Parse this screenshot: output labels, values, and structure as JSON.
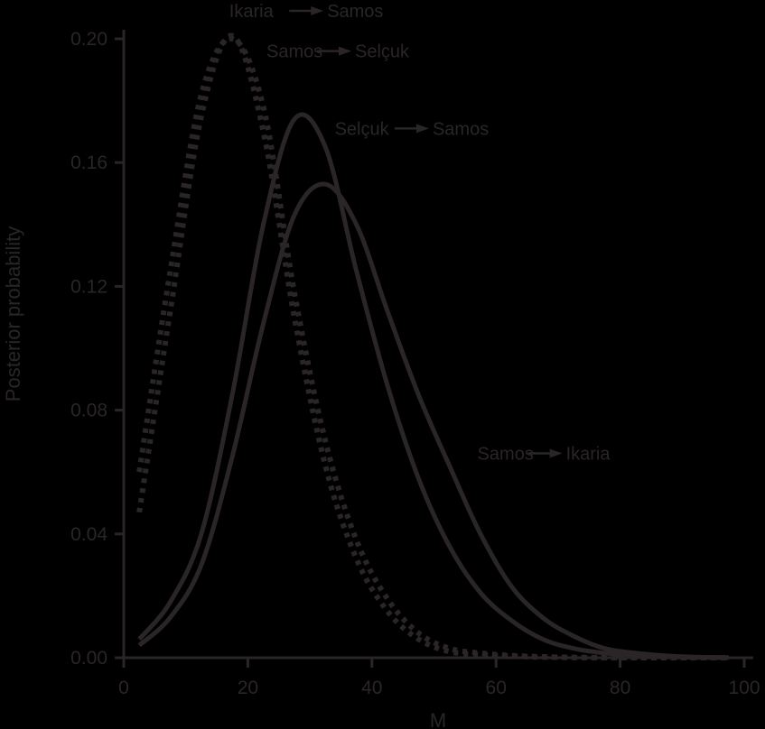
{
  "chart_data": {
    "type": "line",
    "title": "",
    "xlabel": "M",
    "ylabel": "Posterior probability",
    "xlim": [
      0,
      100
    ],
    "ylim": [
      0.0,
      0.2
    ],
    "xticks": [
      0,
      20,
      40,
      60,
      80,
      100
    ],
    "xtick_labels": [
      "0",
      "20",
      "40",
      "60",
      "80",
      "100"
    ],
    "yticks": [
      0.0,
      0.04,
      0.08,
      0.12,
      0.16,
      0.2
    ],
    "ytick_labels": [
      "0.00",
      "0.04",
      "0.08",
      "0.12",
      "0.16",
      "0.20"
    ],
    "grid": false,
    "legend": "none (inline annotations)",
    "annotations": [
      {
        "text": "Ikaria → Samos",
        "from": "Ikaria",
        "to": "Samos",
        "x": 17,
        "y": 0.207
      },
      {
        "text": "Samos → Selçuk",
        "from": "Samos",
        "to": "Selçuk",
        "x": 23,
        "y": 0.194
      },
      {
        "text": "Selçuk → Samos",
        "from": "Selçuk",
        "to": "Samos",
        "x": 34,
        "y": 0.169
      },
      {
        "text": "Samos → Ikaria",
        "from": "Samos",
        "to": "Ikaria",
        "x": 57,
        "y": 0.064
      }
    ],
    "x": [
      2.5,
      7.5,
      12.5,
      17.5,
      22.5,
      27.5,
      32.5,
      37.5,
      42.5,
      47.5,
      52.5,
      57.5,
      62.5,
      67.5,
      72.5,
      77.5,
      82.5,
      87.5,
      92.5,
      97.5
    ],
    "series": [
      {
        "name": "Ikaria → Samos",
        "style": "dotted",
        "values": [
          0.047,
          0.112,
          0.175,
          0.201,
          0.17,
          0.11,
          0.062,
          0.032,
          0.015,
          0.006,
          0.002,
          0.001,
          0.0005,
          0.0002,
          0.0001,
          0.0,
          0.0,
          0.0,
          0.0,
          0.0
        ]
      },
      {
        "name": "Samos → Selçuk",
        "style": "dotted",
        "values": [
          0.06,
          0.125,
          0.182,
          0.2,
          0.178,
          0.118,
          0.07,
          0.038,
          0.019,
          0.008,
          0.003,
          0.0015,
          0.0007,
          0.0003,
          0.0001,
          0.0,
          0.0,
          0.0,
          0.0,
          0.0
        ]
      },
      {
        "name": "Selçuk → Samos",
        "style": "solid",
        "values": [
          0.006,
          0.018,
          0.04,
          0.085,
          0.14,
          0.174,
          0.165,
          0.125,
          0.088,
          0.058,
          0.036,
          0.021,
          0.012,
          0.006,
          0.003,
          0.0015,
          0.0007,
          0.0003,
          0.0001,
          0.0
        ]
      },
      {
        "name": "Samos → Ikaria",
        "style": "solid",
        "values": [
          0.004,
          0.013,
          0.03,
          0.065,
          0.108,
          0.143,
          0.153,
          0.14,
          0.112,
          0.085,
          0.062,
          0.04,
          0.023,
          0.013,
          0.007,
          0.003,
          0.0015,
          0.0006,
          0.0002,
          0.0001
        ]
      }
    ]
  },
  "colors": {
    "background": "#000000",
    "ink": "#2a2527"
  }
}
